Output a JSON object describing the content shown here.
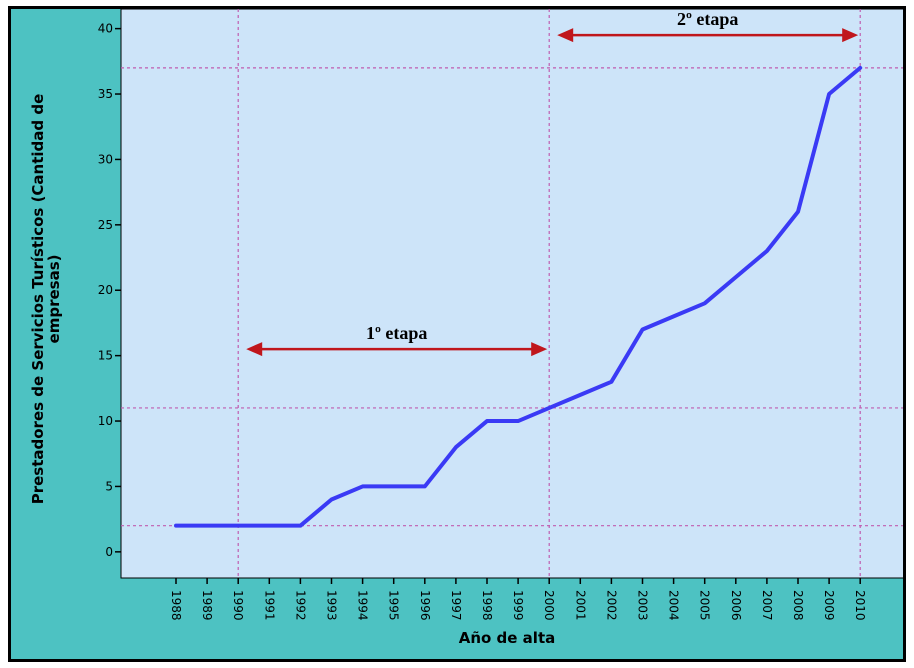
{
  "chart_data": {
    "type": "line",
    "title": "",
    "xlabel": "Año de alta",
    "ylabel_lines": [
      "Prestadores de Servicios Turísticos (Cantidad de",
      "empresas)"
    ],
    "x": [
      "1988",
      "1989",
      "1990",
      "1991",
      "1992",
      "1993",
      "1994",
      "1995",
      "1996",
      "1997",
      "1998",
      "1999",
      "2000",
      "2001",
      "2002",
      "2003",
      "2004",
      "2005",
      "2006",
      "2007",
      "2008",
      "2009",
      "2010"
    ],
    "values": [
      2,
      2,
      2,
      2,
      2,
      4,
      5,
      5,
      5,
      8,
      10,
      10,
      11,
      12,
      13,
      17,
      18,
      19,
      21,
      23,
      26,
      35,
      37
    ],
    "y_ticks": [
      0,
      5,
      10,
      15,
      20,
      25,
      30,
      35,
      40
    ],
    "ylim": [
      -2,
      41.5
    ],
    "grid": false,
    "reference_lines": {
      "vertical_x": [
        "1990",
        "2000",
        "2010"
      ],
      "horizontal_y": [
        2,
        11,
        37
      ]
    },
    "annotations": [
      {
        "label": "1º etapa",
        "from": "1990",
        "to": "2000",
        "y": 15.5
      },
      {
        "label": "2º etapa",
        "from": "2000",
        "to": "2010",
        "y": 39.5
      }
    ],
    "colors": {
      "line": "#3a3af5",
      "plot_background": "#cde4f9",
      "outer_background": "#4dc2c2",
      "reference_line": "#c05cb0",
      "arrow": "#c0161c"
    }
  }
}
